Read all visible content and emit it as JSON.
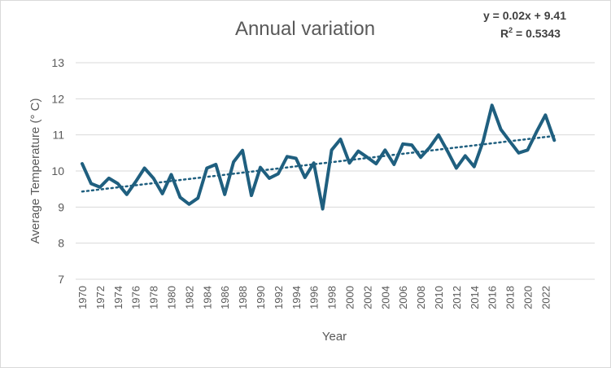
{
  "chart_data": {
    "type": "line",
    "title": "Annual variation",
    "xlabel": "Year",
    "ylabel": "Average Temperature (° C)",
    "ylim": [
      7,
      13
    ],
    "y_ticks": [
      "7",
      "8",
      "9",
      "10",
      "11",
      "12",
      "13"
    ],
    "x_ticks": [
      "1970",
      "1972",
      "1974",
      "1976",
      "1978",
      "1980",
      "1982",
      "1984",
      "1986",
      "1988",
      "1990",
      "1992",
      "1994",
      "1996",
      "1998",
      "2000",
      "2002",
      "2004",
      "2006",
      "2008",
      "2010",
      "2012",
      "2014",
      "2016",
      "2018",
      "2020",
      "2022"
    ],
    "grid": "horizontal",
    "legend": "none",
    "series": [
      {
        "color": "#1f5f7f",
        "x": [
          1970,
          1971,
          1972,
          1973,
          1974,
          1975,
          1976,
          1977,
          1978,
          1979,
          1980,
          1981,
          1982,
          1983,
          1984,
          1985,
          1986,
          1987,
          1988,
          1989,
          1990,
          1991,
          1992,
          1993,
          1994,
          1995,
          1996,
          1997,
          1998,
          1999,
          2000,
          2001,
          2002,
          2003,
          2004,
          2005,
          2006,
          2007,
          2008,
          2009,
          2010,
          2011,
          2012,
          2013,
          2014,
          2015,
          2016,
          2017,
          2018,
          2019,
          2020,
          2021,
          2022,
          2023
        ],
        "values": [
          10.2,
          9.65,
          9.55,
          9.8,
          9.65,
          9.35,
          9.7,
          10.08,
          9.8,
          9.37,
          9.9,
          9.27,
          9.08,
          9.25,
          10.08,
          10.18,
          9.35,
          10.25,
          10.57,
          9.32,
          10.1,
          9.8,
          9.92,
          10.4,
          10.35,
          9.82,
          10.22,
          8.95,
          10.58,
          10.88,
          10.22,
          10.55,
          10.38,
          10.2,
          10.58,
          10.18,
          10.75,
          10.72,
          10.38,
          10.65,
          11.0,
          10.55,
          10.08,
          10.42,
          10.12,
          10.82,
          11.82,
          11.15,
          10.82,
          10.5,
          10.58,
          11.08,
          11.55,
          10.85
        ]
      }
    ],
    "trendline": {
      "style": "dotted",
      "color": "#1f5f7f",
      "start": [
        1970,
        9.43
      ],
      "end": [
        2023,
        10.97
      ]
    },
    "equation_line": "y = 0.02x + 9.41",
    "r2_prefix": "R",
    "r2_sup": "2",
    "r2_value": " = 0.5343"
  }
}
